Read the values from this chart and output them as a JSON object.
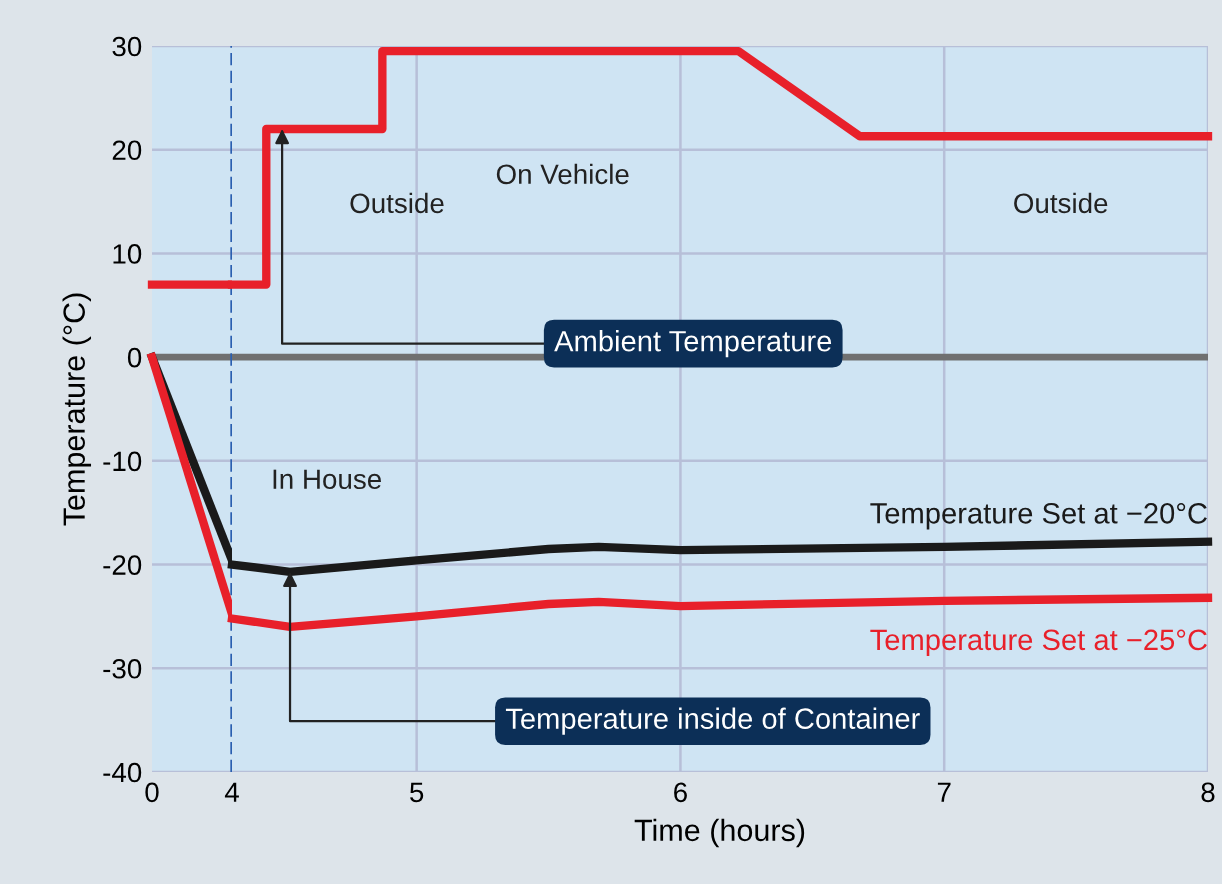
{
  "chart_data": [
    {
      "type": "line",
      "ylabel": "Temperature (°C)",
      "xlim": [
        0,
        4
      ],
      "xticks": [
        0,
        4
      ],
      "ylim": [
        -40,
        30
      ],
      "yticks": [
        -40,
        -30,
        -20,
        -10,
        0,
        10,
        20,
        30
      ],
      "grid": "y",
      "marker": "none",
      "line_style": "solid",
      "series": [
        {
          "color": "#e8202a",
          "x": [
            0,
            4
          ],
          "values": [
            7,
            7
          ]
        },
        {
          "color": "#1a1a1a",
          "x": [
            0,
            4
          ],
          "values": [
            0,
            -19.6
          ]
        },
        {
          "color": "#e8202a",
          "x": [
            0,
            4
          ],
          "values": [
            0,
            -24.8
          ]
        }
      ],
      "ref_lines": [
        {
          "axis": "y",
          "value": 0,
          "color": "#707070",
          "line_style": "solid"
        },
        {
          "axis": "x",
          "value": 4,
          "color": "#2a5fb0",
          "line_style": "dashed"
        }
      ]
    },
    {
      "type": "line",
      "xlabel": "Time (hours)",
      "xlim": [
        4.3,
        8
      ],
      "xticks": [
        5,
        6,
        7,
        8
      ],
      "ylim": [
        -40,
        30
      ],
      "yticks": [
        -40,
        -30,
        -20,
        -10,
        0,
        10,
        20,
        30
      ],
      "tick_labels": "x",
      "grid": true,
      "marker": "none",
      "line_style": "solid",
      "series": [
        {
          "name": "Ambient Temperature",
          "color": "#e8202a",
          "x": [
            4.3,
            4.43,
            4.43,
            4.87,
            4.87,
            6.22,
            6.68,
            8
          ],
          "values": [
            7,
            7,
            22,
            22,
            29.5,
            29.5,
            21.3,
            21.3
          ]
        },
        {
          "name": "Temperature Set at −20°C",
          "color": "#1a1a1a",
          "x": [
            4.3,
            4.52,
            5,
            5.5,
            5.69,
            6,
            7,
            8
          ],
          "values": [
            -20,
            -20.7,
            -19.6,
            -18.5,
            -18.3,
            -18.6,
            -18.3,
            -17.8
          ]
        },
        {
          "name": "Temperature Set at −25°C",
          "color": "#e8202a",
          "x": [
            4.3,
            4.52,
            5,
            5.5,
            5.69,
            6,
            7,
            8
          ],
          "values": [
            -25.2,
            -26,
            -25,
            -23.8,
            -23.6,
            -24,
            -23.5,
            -23.2
          ]
        }
      ],
      "ref_lines": [
        {
          "axis": "y",
          "value": 0,
          "color": "#707070",
          "line_style": "solid"
        }
      ],
      "annotations": [
        "Outside",
        "On Vehicle",
        "Outside",
        "In House",
        {
          "text": "Temperature inside of Container",
          "x": 4.52,
          "y": -20.7
        }
      ]
    }
  ]
}
